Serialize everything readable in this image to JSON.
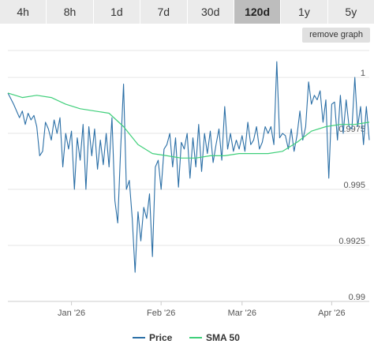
{
  "ranges": [
    {
      "label": "4h",
      "active": false
    },
    {
      "label": "8h",
      "active": false
    },
    {
      "label": "1d",
      "active": false
    },
    {
      "label": "7d",
      "active": false
    },
    {
      "label": "30d",
      "active": false
    },
    {
      "label": "120d",
      "active": true
    },
    {
      "label": "1y",
      "active": false
    },
    {
      "label": "5y",
      "active": false
    }
  ],
  "remove_graph_label": "remove graph",
  "colors": {
    "price": "#2b6fa6",
    "sma": "#3fcf7a",
    "grid": "#e6e6e6"
  },
  "chart_data": {
    "type": "line",
    "x_ticks": [
      "Jan '26",
      "Feb '26",
      "Mar '26",
      "Apr '26"
    ],
    "x_tick_positions": [
      22,
      53,
      81,
      112
    ],
    "xlim": [
      0,
      125
    ],
    "y_ticks": [
      "1",
      "0.9975",
      "0.995",
      "0.9925",
      "0.99"
    ],
    "ylim": [
      0.99,
      1.0012
    ],
    "y_tick_values": [
      1.0,
      0.9975,
      0.995,
      0.9925,
      0.99
    ],
    "legend_position": "bottom",
    "series": [
      {
        "name": "Price",
        "x": [
          0,
          2,
          4,
          5,
          6,
          7,
          8,
          9,
          10,
          11,
          12,
          13,
          14,
          15,
          16,
          17,
          18,
          19,
          20,
          21,
          22,
          23,
          24,
          25,
          26,
          27,
          28,
          29,
          30,
          31,
          32,
          33,
          34,
          35,
          36,
          37,
          38,
          39,
          40,
          41,
          42,
          43,
          44,
          45,
          46,
          47,
          48,
          49,
          50,
          51,
          52,
          53,
          54,
          55,
          56,
          57,
          58,
          59,
          60,
          61,
          62,
          63,
          64,
          65,
          66,
          67,
          68,
          69,
          70,
          71,
          72,
          73,
          74,
          75,
          76,
          77,
          78,
          79,
          80,
          81,
          82,
          83,
          84,
          85,
          86,
          87,
          88,
          89,
          90,
          91,
          92,
          93,
          94,
          95,
          96,
          97,
          98,
          99,
          100,
          101,
          102,
          103,
          104,
          105,
          106,
          107,
          108,
          109,
          110,
          111,
          112,
          113,
          114,
          115,
          116,
          117,
          118,
          119,
          120,
          121,
          122,
          123,
          124,
          125
        ],
        "y": [
          0.9993,
          0.9988,
          0.9982,
          0.9985,
          0.9979,
          0.9984,
          0.9981,
          0.9983,
          0.9978,
          0.9965,
          0.9967,
          0.998,
          0.9977,
          0.9972,
          0.9981,
          0.9975,
          0.9982,
          0.996,
          0.9975,
          0.9968,
          0.9976,
          0.995,
          0.9973,
          0.9963,
          0.9979,
          0.995,
          0.9978,
          0.9965,
          0.9977,
          0.9959,
          0.9972,
          0.9961,
          0.9975,
          0.996,
          0.9982,
          0.9945,
          0.9935,
          0.9968,
          0.9997,
          0.995,
          0.9954,
          0.9937,
          0.9913,
          0.994,
          0.9927,
          0.9942,
          0.9937,
          0.9948,
          0.992,
          0.996,
          0.9963,
          0.995,
          0.9968,
          0.997,
          0.9975,
          0.996,
          0.9973,
          0.9951,
          0.9971,
          0.9968,
          0.9975,
          0.9955,
          0.9973,
          0.996,
          0.9979,
          0.9958,
          0.9975,
          0.9966,
          0.9976,
          0.9962,
          0.997,
          0.9977,
          0.9963,
          0.9987,
          0.9968,
          0.9975,
          0.9967,
          0.9972,
          0.9968,
          0.9974,
          0.9967,
          0.998,
          0.997,
          0.9972,
          0.9978,
          0.9968,
          0.9971,
          0.9978,
          0.9975,
          0.9978,
          0.997,
          1.0007,
          0.9973,
          0.9975,
          0.9974,
          0.9968,
          0.9977,
          0.9967,
          0.9974,
          0.9985,
          0.9972,
          0.9978,
          0.9998,
          0.9988,
          0.9992,
          0.999,
          0.9994,
          0.998,
          0.999,
          0.9955,
          0.9988,
          0.9989,
          0.9972,
          0.9992,
          0.9975,
          0.999,
          0.9978,
          0.9977,
          1.0,
          0.9978,
          0.9987,
          0.997,
          0.9987,
          0.9972
        ]
      },
      {
        "name": "SMA 50",
        "x": [
          0,
          5,
          10,
          15,
          20,
          25,
          30,
          35,
          40,
          45,
          50,
          55,
          60,
          65,
          70,
          75,
          80,
          85,
          90,
          95,
          100,
          105,
          110,
          115,
          120,
          125
        ],
        "y": [
          0.9993,
          0.9991,
          0.9992,
          0.9991,
          0.9988,
          0.9986,
          0.9985,
          0.9984,
          0.9978,
          0.997,
          0.9966,
          0.9965,
          0.9964,
          0.9964,
          0.9965,
          0.9965,
          0.9966,
          0.9966,
          0.9966,
          0.9967,
          0.9971,
          0.9976,
          0.9978,
          0.9979,
          0.9979,
          0.998
        ]
      }
    ]
  }
}
